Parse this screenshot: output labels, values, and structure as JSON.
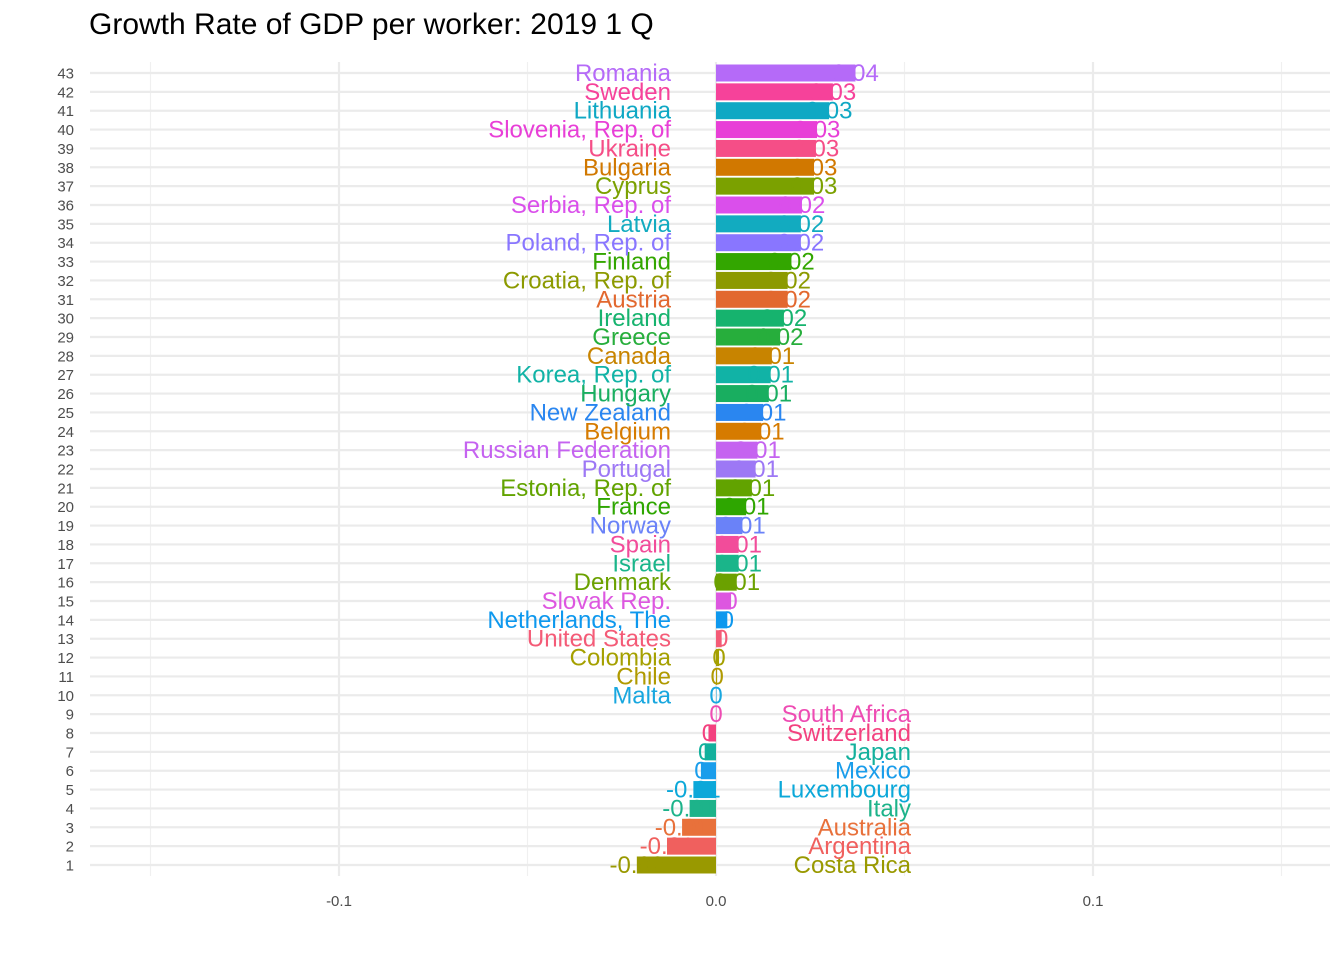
{
  "chart_data": {
    "type": "bar",
    "orientation": "horizontal",
    "title": "Growth Rate of GDP per worker: 2019 1 Q",
    "xlabel": "",
    "ylabel": "",
    "xlim": [
      -0.17,
      0.16
    ],
    "x_ticks": [
      -0.1,
      0.0,
      0.1
    ],
    "x_tick_labels": [
      "-0.1",
      "0.0",
      "0.1"
    ],
    "grid": true,
    "legend": "none",
    "rows": [
      {
        "rank": "1",
        "country": "Costa Rica",
        "value": -0.021,
        "label": "-0.02",
        "color": "#999900"
      },
      {
        "rank": "2",
        "country": "Argentina",
        "value": -0.013,
        "label": "-0.01",
        "color": "#F0605E"
      },
      {
        "rank": "3",
        "country": "Australia",
        "value": -0.009,
        "label": "-0.01",
        "color": "#E8713B"
      },
      {
        "rank": "4",
        "country": "Italy",
        "value": -0.007,
        "label": "-0.01",
        "color": "#1DB38A"
      },
      {
        "rank": "5",
        "country": "Luxembourg",
        "value": -0.006,
        "label": "-0.01",
        "color": "#0CA8D9"
      },
      {
        "rank": "6",
        "country": "Mexico",
        "value": -0.004,
        "label": "0",
        "color": "#1A9DEB"
      },
      {
        "rank": "7",
        "country": "Japan",
        "value": -0.003,
        "label": "0",
        "color": "#13B09C"
      },
      {
        "rank": "8",
        "country": "Switzerland",
        "value": -0.002,
        "label": "0",
        "color": "#F3417F"
      },
      {
        "rank": "9",
        "country": "South Africa",
        "value": 0.0,
        "label": "0",
        "color": "#EE4CB3"
      },
      {
        "rank": "10",
        "country": "Malta",
        "value": 0.0,
        "label": "0",
        "color": "#18A7DF"
      },
      {
        "rank": "11",
        "country": "Chile",
        "value": 0.0003,
        "label": "0",
        "color": "#B09A00"
      },
      {
        "rank": "12",
        "country": "Colombia",
        "value": 0.0008,
        "label": "0",
        "color": "#A5A000"
      },
      {
        "rank": "13",
        "country": "United States",
        "value": 0.0015,
        "label": "0",
        "color": "#F45B77"
      },
      {
        "rank": "14",
        "country": "Netherlands, The",
        "value": 0.003,
        "label": "0",
        "color": "#0E98EE"
      },
      {
        "rank": "15",
        "country": "Slovak Rep.",
        "value": 0.004,
        "label": "0",
        "color": "#DD57E0"
      },
      {
        "rank": "16",
        "country": "Denmark",
        "value": 0.0055,
        "label": "0.01",
        "color": "#6BA100"
      },
      {
        "rank": "17",
        "country": "Israel",
        "value": 0.006,
        "label": "0.01",
        "color": "#1AB58A"
      },
      {
        "rank": "18",
        "country": "Spain",
        "value": 0.006,
        "label": "0.01",
        "color": "#F24C9A"
      },
      {
        "rank": "19",
        "country": "Norway",
        "value": 0.007,
        "label": "0.01",
        "color": "#6A82F8"
      },
      {
        "rank": "20",
        "country": "France",
        "value": 0.008,
        "label": "0.01",
        "color": "#2EA600"
      },
      {
        "rank": "21",
        "country": "Estonia, Rep. of",
        "value": 0.0095,
        "label": "0.01",
        "color": "#62A300"
      },
      {
        "rank": "22",
        "country": "Portugal",
        "value": 0.0105,
        "label": "0.01",
        "color": "#9D78F5"
      },
      {
        "rank": "23",
        "country": "Russian Federation",
        "value": 0.011,
        "label": "0.01",
        "color": "#C563F0"
      },
      {
        "rank": "24",
        "country": "Belgium",
        "value": 0.012,
        "label": "0.01",
        "color": "#D67B00"
      },
      {
        "rank": "25",
        "country": "New Zealand",
        "value": 0.0125,
        "label": "0.01",
        "color": "#2A86F0"
      },
      {
        "rank": "26",
        "country": "Hungary",
        "value": 0.014,
        "label": "0.01",
        "color": "#19AE60"
      },
      {
        "rank": "27",
        "country": "Korea, Rep. of",
        "value": 0.0145,
        "label": "0.01",
        "color": "#11B3A6"
      },
      {
        "rank": "28",
        "country": "Canada",
        "value": 0.0148,
        "label": "0.01",
        "color": "#C88400"
      },
      {
        "rank": "29",
        "country": "Greece",
        "value": 0.017,
        "label": "0.02",
        "color": "#27AE3C"
      },
      {
        "rank": "30",
        "country": "Ireland",
        "value": 0.018,
        "label": "0.02",
        "color": "#16B36E"
      },
      {
        "rank": "31",
        "country": "Austria",
        "value": 0.019,
        "label": "0.02",
        "color": "#E2682F"
      },
      {
        "rank": "32",
        "country": "Croatia, Rep. of",
        "value": 0.019,
        "label": "0.02",
        "color": "#8C9A00"
      },
      {
        "rank": "33",
        "country": "Finland",
        "value": 0.02,
        "label": "0.02",
        "color": "#33A600"
      },
      {
        "rank": "34",
        "country": "Poland, Rep. of",
        "value": 0.0225,
        "label": "0.02",
        "color": "#8976FF"
      },
      {
        "rank": "35",
        "country": "Latvia",
        "value": 0.0225,
        "label": "0.02",
        "color": "#12ABC0"
      },
      {
        "rank": "36",
        "country": "Serbia, Rep. of",
        "value": 0.0228,
        "label": "0.02",
        "color": "#DA4FEB"
      },
      {
        "rank": "37",
        "country": "Cyprus",
        "value": 0.026,
        "label": "0.03",
        "color": "#7BA100"
      },
      {
        "rank": "38",
        "country": "Bulgaria",
        "value": 0.026,
        "label": "0.03",
        "color": "#D17800"
      },
      {
        "rank": "39",
        "country": "Ukraine",
        "value": 0.0265,
        "label": "0.03",
        "color": "#F54E87"
      },
      {
        "rank": "40",
        "country": "Slovenia, Rep. of",
        "value": 0.0268,
        "label": "0.03",
        "color": "#E83FD7"
      },
      {
        "rank": "41",
        "country": "Lithuania",
        "value": 0.03,
        "label": "0.03",
        "color": "#0FA8C4"
      },
      {
        "rank": "42",
        "country": "Sweden",
        "value": 0.031,
        "label": "0.03",
        "color": "#F6429A"
      },
      {
        "rank": "43",
        "country": "Romania",
        "value": 0.037,
        "label": "0.04",
        "color": "#B56AF8"
      }
    ]
  }
}
